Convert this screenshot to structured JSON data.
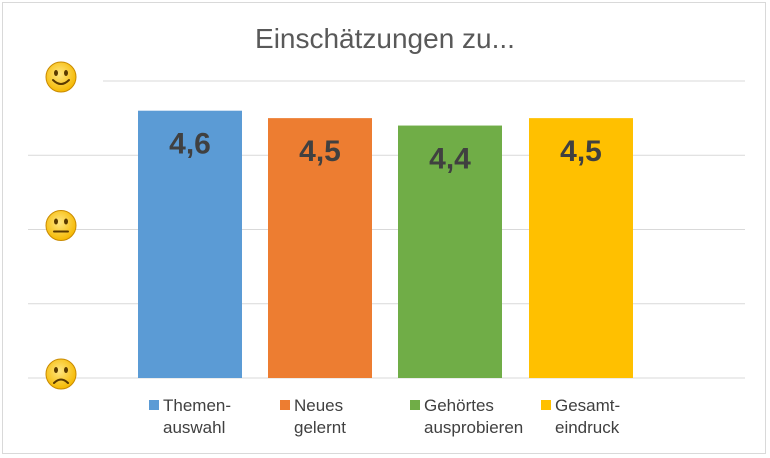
{
  "chart_data": {
    "type": "bar",
    "title": "Einschätzungen zu...",
    "xlabel": "",
    "ylabel": "",
    "ylim": [
      1,
      5
    ],
    "gridlines": [
      1,
      2,
      3,
      4,
      5
    ],
    "grid": true,
    "y_tick_icons": [
      {
        "value": 5,
        "icon": "smiling-face-icon"
      },
      {
        "value": 3,
        "icon": "neutral-face-icon"
      },
      {
        "value": 1,
        "icon": "frowning-face-icon"
      }
    ],
    "categories": [
      "Themenauswahl",
      "Neues gelernt",
      "Gehörtes ausprobieren",
      "Gesamteindruck"
    ],
    "series": [
      {
        "category": "Themenauswahl",
        "legend_lines": [
          "Themen-",
          "auswahl"
        ],
        "value": 4.6,
        "label": "4,6",
        "color": "#5b9bd5"
      },
      {
        "category": "Neues gelernt",
        "legend_lines": [
          "Neues",
          "gelernt"
        ],
        "value": 4.5,
        "label": "4,5",
        "color": "#ed7d31"
      },
      {
        "category": "Gehörtes ausprobieren",
        "legend_lines": [
          "Gehörtes",
          "ausprobieren"
        ],
        "value": 4.4,
        "label": "4,4",
        "color": "#70ad47"
      },
      {
        "category": "Gesamteindruck",
        "legend_lines": [
          "Gesamt-",
          "eindruck"
        ],
        "value": 4.5,
        "label": "4,5",
        "color": "#ffc000"
      }
    ],
    "legend_position": "bottom"
  }
}
